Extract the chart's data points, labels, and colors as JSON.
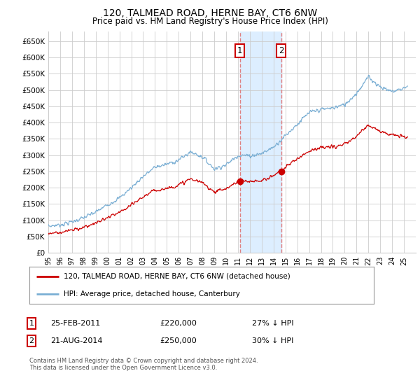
{
  "title": "120, TALMEAD ROAD, HERNE BAY, CT6 6NW",
  "subtitle": "Price paid vs. HM Land Registry's House Price Index (HPI)",
  "hpi_label": "HPI: Average price, detached house, Canterbury",
  "house_label": "120, TALMEAD ROAD, HERNE BAY, CT6 6NW (detached house)",
  "footnote": "Contains HM Land Registry data © Crown copyright and database right 2024.\nThis data is licensed under the Open Government Licence v3.0.",
  "ylim": [
    0,
    680000
  ],
  "yticks": [
    0,
    50000,
    100000,
    150000,
    200000,
    250000,
    300000,
    350000,
    400000,
    450000,
    500000,
    550000,
    600000,
    650000
  ],
  "hpi_color": "#7bafd4",
  "house_color": "#cc0000",
  "sale1_date": 2011.15,
  "sale2_date": 2014.65,
  "sale1_price": 220000,
  "sale2_price": 250000,
  "vspan_color": "#ddeeff",
  "vline_color": "#e08080",
  "background_color": "#ffffff",
  "grid_color": "#cccccc",
  "title_fontsize": 10,
  "subtitle_fontsize": 9
}
